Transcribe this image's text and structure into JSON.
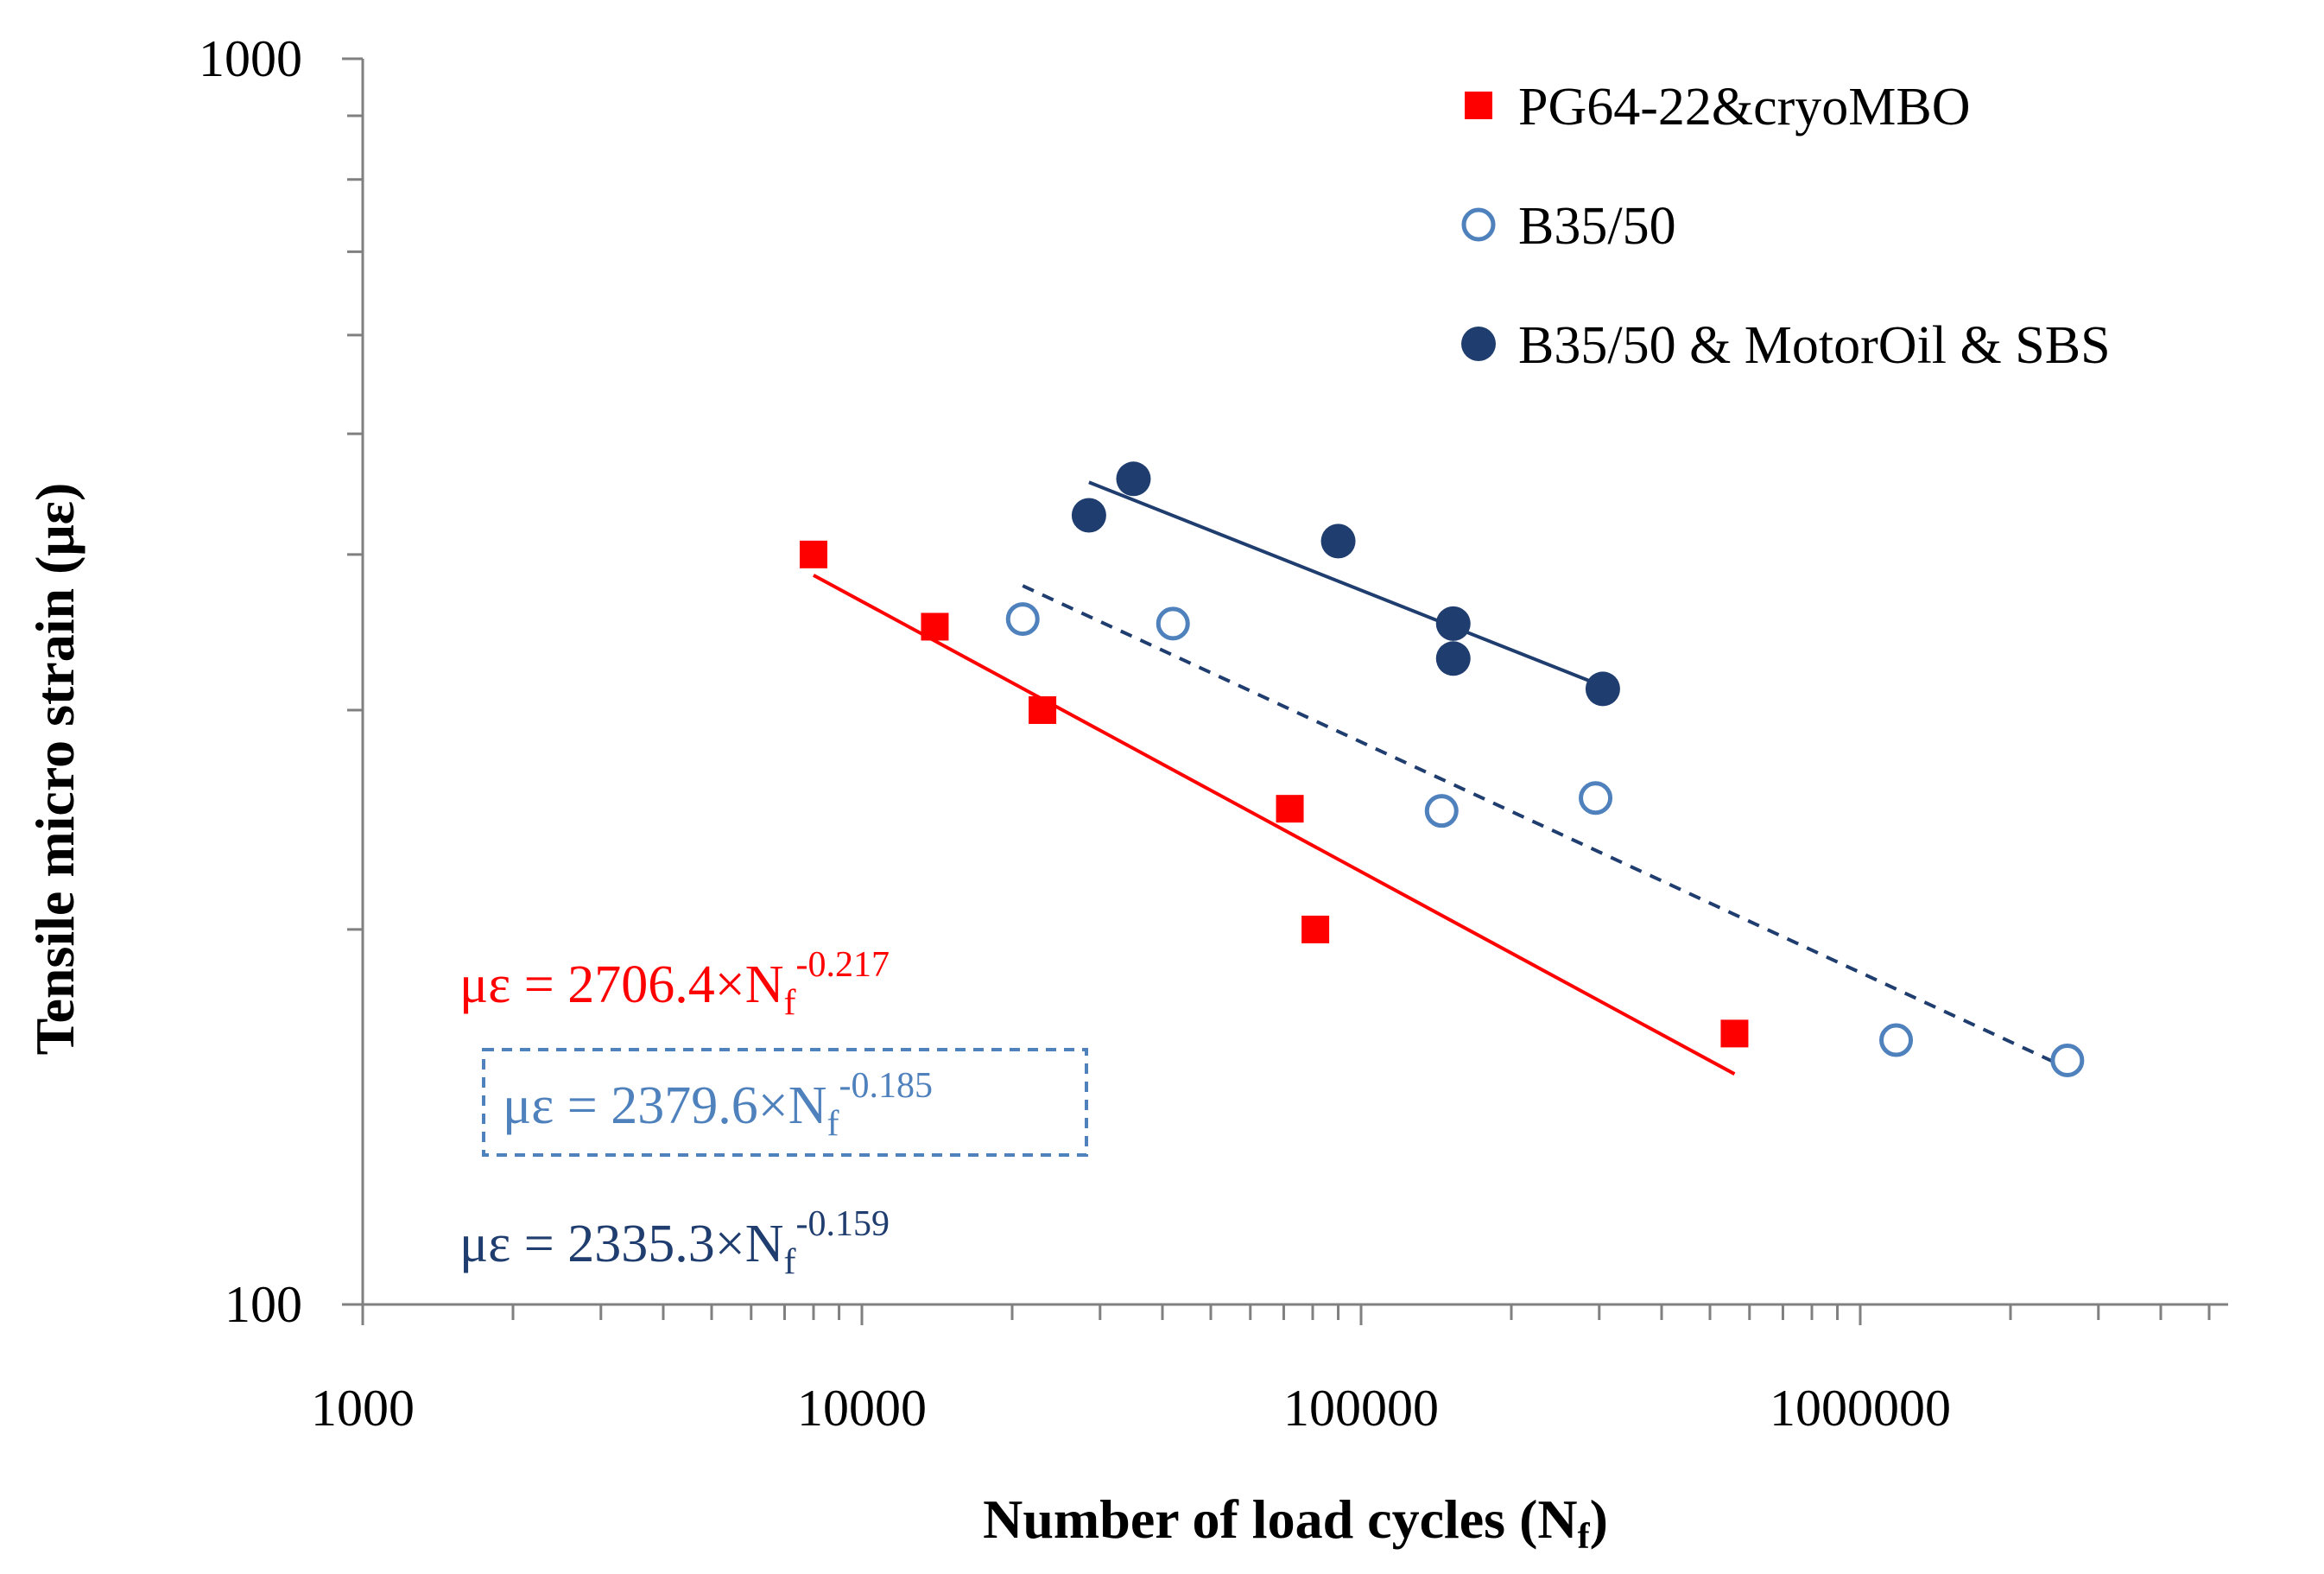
{
  "chart_data": {
    "type": "scatter",
    "title": "",
    "xlabel": "Number of load cycles (N",
    "xlabel_sub": "f",
    "xlabel_close": ")",
    "ylabel": "Tensile micro strain (με)",
    "xscale": "log",
    "yscale": "log",
    "xlim": [
      1000,
      5000000
    ],
    "ylim": [
      100,
      1000
    ],
    "x_ticks": [
      "1000",
      "10000",
      "100000",
      "1000000"
    ],
    "y_ticks": [
      "100",
      "1000"
    ],
    "grid": false,
    "legend_position": "top-right",
    "series": [
      {
        "name": "PG64-22&cryoMBO",
        "marker": "filled-square",
        "color": "#ff0000",
        "points": [
          [
            8000,
            400
          ],
          [
            14000,
            350
          ],
          [
            23000,
            300
          ],
          [
            72000,
            250
          ],
          [
            81000,
            200
          ],
          [
            560000,
            165
          ]
        ],
        "fit": {
          "a": 2706.4,
          "b": -0.217,
          "x_range": [
            8000,
            560000
          ],
          "dash": false
        }
      },
      {
        "name": "B35/50",
        "marker": "open-circle",
        "color": "#4f81bd",
        "points": [
          [
            21000,
            355
          ],
          [
            42000,
            352
          ],
          [
            145000,
            249
          ],
          [
            295000,
            255
          ],
          [
            1180000,
            163
          ],
          [
            2600000,
            157
          ]
        ],
        "fit": {
          "a": 2379.6,
          "b": -0.185,
          "x_range": [
            21000,
            2600000
          ],
          "dash": true,
          "line_color": "#1f3d6e"
        }
      },
      {
        "name": "B35/50 & MotorOil & SBS",
        "marker": "filled-circle",
        "color": "#1f3d6e",
        "points": [
          [
            28500,
            430
          ],
          [
            35000,
            460
          ],
          [
            90000,
            410
          ],
          [
            153000,
            352
          ],
          [
            153000,
            330
          ],
          [
            305000,
            312
          ]
        ],
        "fit": {
          "a": 2335.3,
          "b": -0.159,
          "x_range": [
            28500,
            305000
          ],
          "dash": false
        }
      }
    ],
    "equations": [
      {
        "prefix": "με = 2706.4×N",
        "sub": "f",
        "sup": "-0.217",
        "color": "#ff0000",
        "boxed": false
      },
      {
        "prefix": "με = 2379.6×N",
        "sub": "f",
        "sup": "-0.185",
        "color": "#4f81bd",
        "boxed": true
      },
      {
        "prefix": "με = 2335.3×N",
        "sub": "f",
        "sup": "-0.159",
        "color": "#1f3d6e",
        "boxed": false
      }
    ]
  }
}
